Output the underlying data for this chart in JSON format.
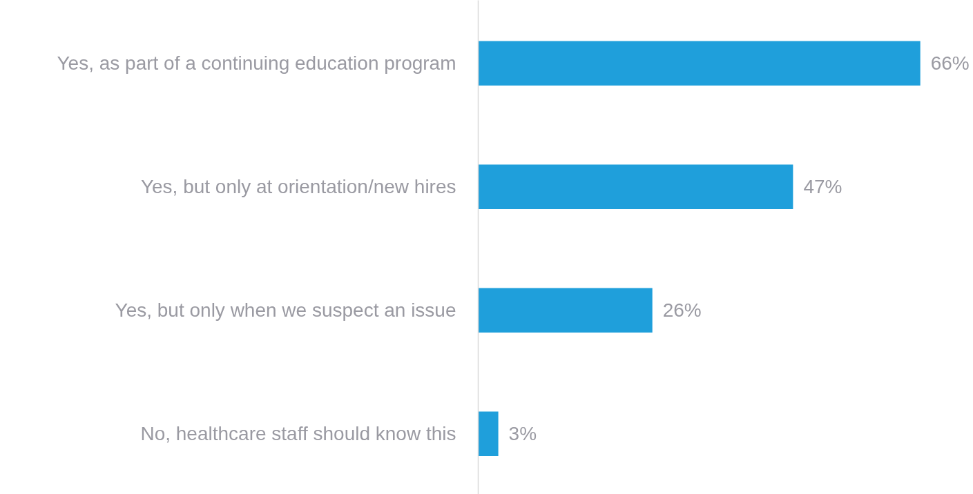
{
  "chart_data": {
    "type": "bar",
    "orientation": "horizontal",
    "categories": [
      "Yes, as part of a continuing education program",
      "Yes, but only at orientation/new hires",
      "Yes, but only when we suspect an issue",
      "No, healthcare staff should know this"
    ],
    "values": [
      66,
      47,
      26,
      3
    ],
    "value_labels": [
      "66%",
      "47%",
      "26%",
      "3%"
    ],
    "color": "#1f9fdb"
  }
}
